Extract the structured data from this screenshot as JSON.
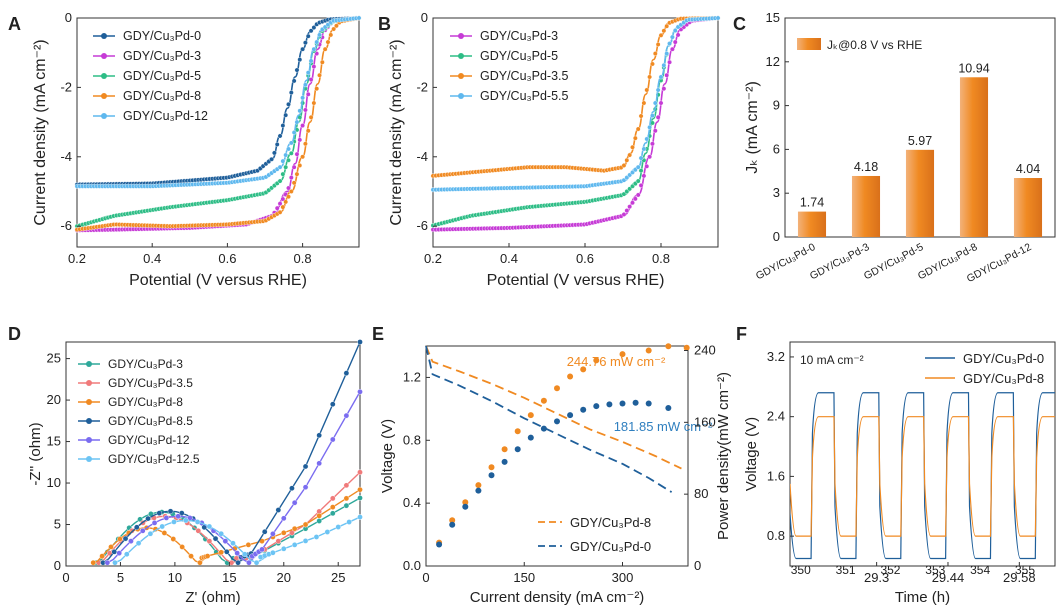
{
  "chart_data": [
    {
      "panel": "A",
      "type": "line",
      "xlabel": "Potential (V versus RHE)",
      "ylabel": "Current density (mA cm⁻²)",
      "xlim": [
        0.2,
        0.95
      ],
      "ylim": [
        -6.6,
        0
      ],
      "xticks": [
        0.2,
        0.4,
        0.6,
        0.8
      ],
      "yticks": [
        0,
        -2,
        -4,
        -6
      ],
      "legend_position": "top-left",
      "series": [
        {
          "name": "GDY/Cu₃Pd-0",
          "color": "#1f5f9a",
          "points": [
            [
              0.2,
              -4.8
            ],
            [
              0.4,
              -4.77
            ],
            [
              0.6,
              -4.6
            ],
            [
              0.68,
              -4.4
            ],
            [
              0.72,
              -4.05
            ],
            [
              0.74,
              -3.4
            ],
            [
              0.76,
              -2.6
            ],
            [
              0.78,
              -1.7
            ],
            [
              0.8,
              -0.9
            ],
            [
              0.82,
              -0.4
            ],
            [
              0.84,
              -0.15
            ],
            [
              0.87,
              -0.04
            ],
            [
              0.95,
              0
            ]
          ]
        },
        {
          "name": "GDY/Cu₃Pd-3",
          "color": "#c63bd6",
          "points": [
            [
              0.2,
              -6.12
            ],
            [
              0.3,
              -6.1
            ],
            [
              0.5,
              -6.05
            ],
            [
              0.65,
              -5.95
            ],
            [
              0.72,
              -5.7
            ],
            [
              0.76,
              -5.0
            ],
            [
              0.78,
              -4.2
            ],
            [
              0.8,
              -3.1
            ],
            [
              0.82,
              -1.9
            ],
            [
              0.84,
              -0.9
            ],
            [
              0.86,
              -0.35
            ],
            [
              0.88,
              -0.1
            ],
            [
              0.95,
              0
            ]
          ]
        },
        {
          "name": "GDY/Cu₃Pd-5",
          "color": "#2ebd86",
          "points": [
            [
              0.2,
              -6.0
            ],
            [
              0.3,
              -5.7
            ],
            [
              0.45,
              -5.45
            ],
            [
              0.6,
              -5.25
            ],
            [
              0.7,
              -5.05
            ],
            [
              0.74,
              -4.7
            ],
            [
              0.77,
              -3.9
            ],
            [
              0.79,
              -3.0
            ],
            [
              0.81,
              -1.9
            ],
            [
              0.83,
              -0.95
            ],
            [
              0.85,
              -0.4
            ],
            [
              0.88,
              -0.1
            ],
            [
              0.95,
              0
            ]
          ]
        },
        {
          "name": "GDY/Cu₃Pd-8",
          "color": "#f08a22",
          "points": [
            [
              0.2,
              -6.1
            ],
            [
              0.3,
              -5.95
            ],
            [
              0.45,
              -6.0
            ],
            [
              0.6,
              -5.95
            ],
            [
              0.7,
              -5.85
            ],
            [
              0.74,
              -5.6
            ],
            [
              0.77,
              -5.0
            ],
            [
              0.8,
              -4.0
            ],
            [
              0.82,
              -3.0
            ],
            [
              0.84,
              -1.9
            ],
            [
              0.86,
              -0.9
            ],
            [
              0.88,
              -0.35
            ],
            [
              0.9,
              -0.1
            ],
            [
              0.95,
              0
            ]
          ]
        },
        {
          "name": "GDY/Cu₃Pd-12",
          "color": "#5fb8ee",
          "points": [
            [
              0.2,
              -4.85
            ],
            [
              0.4,
              -4.85
            ],
            [
              0.6,
              -4.75
            ],
            [
              0.7,
              -4.6
            ],
            [
              0.74,
              -4.3
            ],
            [
              0.77,
              -3.6
            ],
            [
              0.79,
              -2.8
            ],
            [
              0.81,
              -1.8
            ],
            [
              0.83,
              -0.9
            ],
            [
              0.85,
              -0.35
            ],
            [
              0.88,
              -0.08
            ],
            [
              0.95,
              0
            ]
          ]
        }
      ]
    },
    {
      "panel": "B",
      "type": "line",
      "xlabel": "Potential (V versus RHE)",
      "ylabel": "Current density (mA cm⁻²)",
      "xlim": [
        0.2,
        0.95
      ],
      "ylim": [
        -6.6,
        0
      ],
      "xticks": [
        0.2,
        0.4,
        0.6,
        0.8
      ],
      "yticks": [
        0,
        -2,
        -4,
        -6
      ],
      "legend_position": "top-left",
      "series": [
        {
          "name": "GDY/Cu₃Pd-3",
          "color": "#c63bd6",
          "points": [
            [
              0.2,
              -6.1
            ],
            [
              0.4,
              -6.05
            ],
            [
              0.6,
              -5.95
            ],
            [
              0.7,
              -5.7
            ],
            [
              0.74,
              -5.1
            ],
            [
              0.77,
              -4.0
            ],
            [
              0.79,
              -3.0
            ],
            [
              0.81,
              -1.9
            ],
            [
              0.83,
              -0.9
            ],
            [
              0.85,
              -0.35
            ],
            [
              0.88,
              -0.08
            ],
            [
              0.95,
              0
            ]
          ]
        },
        {
          "name": "GDY/Cu₃Pd-5",
          "color": "#2ebd86",
          "points": [
            [
              0.2,
              -5.98
            ],
            [
              0.3,
              -5.7
            ],
            [
              0.45,
              -5.45
            ],
            [
              0.6,
              -5.3
            ],
            [
              0.7,
              -5.1
            ],
            [
              0.74,
              -4.7
            ],
            [
              0.76,
              -3.9
            ],
            [
              0.78,
              -2.9
            ],
            [
              0.8,
              -1.8
            ],
            [
              0.82,
              -0.8
            ],
            [
              0.84,
              -0.3
            ],
            [
              0.87,
              -0.05
            ],
            [
              0.95,
              0
            ]
          ]
        },
        {
          "name": "GDY/Cu₃Pd-3.5",
          "color": "#f08a22",
          "points": [
            [
              0.2,
              -4.55
            ],
            [
              0.3,
              -4.45
            ],
            [
              0.45,
              -4.3
            ],
            [
              0.55,
              -4.3
            ],
            [
              0.65,
              -4.4
            ],
            [
              0.7,
              -4.3
            ],
            [
              0.72,
              -3.9
            ],
            [
              0.74,
              -3.2
            ],
            [
              0.76,
              -2.2
            ],
            [
              0.78,
              -1.2
            ],
            [
              0.8,
              -0.5
            ],
            [
              0.82,
              -0.15
            ],
            [
              0.85,
              -0.02
            ],
            [
              0.95,
              0
            ]
          ]
        },
        {
          "name": "GDY/Cu₃Pd-5.5",
          "color": "#5fb8ee",
          "points": [
            [
              0.2,
              -4.95
            ],
            [
              0.4,
              -4.9
            ],
            [
              0.6,
              -4.85
            ],
            [
              0.7,
              -4.7
            ],
            [
              0.74,
              -4.3
            ],
            [
              0.76,
              -3.6
            ],
            [
              0.78,
              -2.7
            ],
            [
              0.8,
              -1.7
            ],
            [
              0.82,
              -0.8
            ],
            [
              0.84,
              -0.3
            ],
            [
              0.87,
              -0.05
            ],
            [
              0.95,
              0
            ]
          ]
        }
      ]
    },
    {
      "panel": "C",
      "type": "bar",
      "ylabel": "Jₖ (mA cm⁻²)",
      "legend": "Jₖ@0.8 V vs RHE",
      "categories": [
        "GDY/Cu₃Pd-0",
        "GDY/Cu₃Pd-3",
        "GDY/Cu₃Pd-5",
        "GDY/Cu₃Pd-8",
        "GDY/Cu₃Pd-12"
      ],
      "values": [
        1.74,
        4.18,
        5.97,
        10.94,
        4.04
      ],
      "value_labels": [
        "1.74",
        "4.18",
        "5.97",
        "10.94",
        "4.04"
      ],
      "ylim": [
        0,
        15
      ],
      "yticks": [
        0,
        3,
        6,
        9,
        12,
        15
      ],
      "bar_color": "#f08a22"
    },
    {
      "panel": "D",
      "type": "scatter",
      "xlabel": "Z' (ohm)",
      "ylabel": "-Z'' (ohm)",
      "xlim": [
        0,
        27
      ],
      "ylim": [
        0,
        27
      ],
      "xticks": [
        0,
        5,
        10,
        15,
        20,
        25
      ],
      "yticks": [
        0,
        5,
        10,
        15,
        20,
        25
      ],
      "legend_position": "top-left",
      "series": [
        {
          "name": "GDY/Cu₃Pd-3",
          "color": "#2ea89a",
          "arc": [
            2.8,
            14.8,
            6.5
          ],
          "tail": [
            [
              17,
              1.0
            ],
            [
              22,
              4.5
            ],
            [
              27,
              8.2
            ]
          ]
        },
        {
          "name": "GDY/Cu₃Pd-3.5",
          "color": "#f07a7a",
          "arc": [
            3.0,
            15.2,
            6.0
          ],
          "tail": [
            [
              17,
              1.0
            ],
            [
              22,
              5.0
            ],
            [
              27,
              11.3
            ]
          ]
        },
        {
          "name": "GDY/Cu₃Pd-8",
          "color": "#f08a22",
          "arc": [
            2.5,
            12.3,
            4.6
          ],
          "tail": [
            [
              13,
              1.2
            ],
            [
              18,
              3.0
            ],
            [
              22,
              5.0
            ],
            [
              27,
              9.2
            ]
          ]
        },
        {
          "name": "GDY/Cu₃Pd-8.5",
          "color": "#1f5f9a",
          "arc": [
            3.4,
            15.8,
            6.6
          ],
          "tail": [
            [
              17,
              1.5
            ],
            [
              22,
              12.0
            ],
            [
              27,
              27.0
            ]
          ]
        },
        {
          "name": "GDY/Cu₃Pd-12",
          "color": "#7a6cf0",
          "arc": [
            3.8,
            16.8,
            6.0
          ],
          "tail": [
            [
              18,
              2.0
            ],
            [
              22,
              9.5
            ],
            [
              27,
              21.0
            ]
          ]
        },
        {
          "name": "GDY/Cu₃Pd-12.5",
          "color": "#6cc4f4",
          "arc": [
            4.5,
            17.5,
            5.5
          ],
          "tail": [
            [
              19,
              1.6
            ],
            [
              23,
              3.5
            ],
            [
              27,
              5.9
            ]
          ]
        }
      ]
    },
    {
      "panel": "E",
      "type": "line+scatter",
      "xlabel": "Current density (mA cm⁻²)",
      "ylabel": "Voltage (V)",
      "y2label": "Power density(mW cm⁻²)",
      "xlim": [
        0,
        400
      ],
      "ylim": [
        0,
        1.4
      ],
      "y2lim": [
        0,
        245
      ],
      "xticks": [
        0,
        150,
        300
      ],
      "yticks": [
        0.0,
        0.4,
        0.8,
        1.2
      ],
      "y2ticks": [
        0,
        80,
        160,
        240
      ],
      "legend_position": "bottom-right",
      "annotations": [
        "244.76 mW cm⁻²",
        "181.85 mW cm⁻²"
      ],
      "series": [
        {
          "name": "GDY/Cu₃Pd-8",
          "color": "#f08a22",
          "style": "dashed",
          "voltage": [
            [
              0,
              1.4
            ],
            [
              10,
              1.3
            ],
            [
              50,
              1.24
            ],
            [
              100,
              1.16
            ],
            [
              150,
              1.07
            ],
            [
              200,
              0.97
            ],
            [
              250,
              0.87
            ],
            [
              300,
              0.79
            ],
            [
              350,
              0.7
            ],
            [
              390,
              0.62
            ]
          ],
          "power": [
            [
              20,
              26
            ],
            [
              40,
              51
            ],
            [
              60,
              71
            ],
            [
              80,
              90
            ],
            [
              100,
              110
            ],
            [
              120,
              130
            ],
            [
              140,
              150
            ],
            [
              160,
              168
            ],
            [
              180,
              184
            ],
            [
              200,
              198
            ],
            [
              220,
              211
            ],
            [
              240,
              219
            ],
            [
              260,
              229
            ],
            [
              300,
              236
            ],
            [
              340,
              240
            ],
            [
              370,
              244.76
            ],
            [
              398,
              243
            ]
          ]
        },
        {
          "name": "GDY/Cu₃Pd-0",
          "color": "#1f5f9a",
          "style": "dashed",
          "voltage": [
            [
              0,
              1.4
            ],
            [
              10,
              1.22
            ],
            [
              50,
              1.15
            ],
            [
              100,
              1.05
            ],
            [
              150,
              0.94
            ],
            [
              200,
              0.84
            ],
            [
              250,
              0.74
            ],
            [
              300,
              0.65
            ],
            [
              340,
              0.56
            ],
            [
              375,
              0.47
            ]
          ],
          "power": [
            [
              20,
              24
            ],
            [
              40,
              46
            ],
            [
              60,
              66
            ],
            [
              80,
              84
            ],
            [
              100,
              101
            ],
            [
              120,
              116
            ],
            [
              140,
              130
            ],
            [
              160,
              143
            ],
            [
              180,
              153
            ],
            [
              200,
              161
            ],
            [
              220,
              168
            ],
            [
              240,
              174
            ],
            [
              260,
              178
            ],
            [
              280,
              180
            ],
            [
              300,
              181
            ],
            [
              320,
              181.85
            ],
            [
              340,
              181
            ],
            [
              370,
              176
            ]
          ]
        }
      ]
    },
    {
      "panel": "F",
      "type": "line",
      "xlabel": "Time (h)",
      "ylabel": "Voltage (V)",
      "xlim": [
        29.13,
        29.65
      ],
      "ylim": [
        0.4,
        3.4
      ],
      "xticks": [
        29.3,
        29.44,
        29.58
      ],
      "yticks": [
        0.8,
        1.6,
        2.4,
        3.2
      ],
      "annotation": "10 mA cm⁻²",
      "cycle_labels": [
        "350",
        "351",
        "352",
        "353",
        "354",
        "355"
      ],
      "legend_position": "top-right",
      "series": [
        {
          "name": "GDY/Cu₃Pd-0",
          "color": "#1f5f9a",
          "low": 0.5,
          "high": 2.72
        },
        {
          "name": "GDY/Cu₃Pd-8",
          "color": "#f08a22",
          "low": 0.8,
          "high": 2.4
        }
      ]
    }
  ],
  "labels": {
    "A": "A",
    "B": "B",
    "C": "C",
    "D": "D",
    "E": "E",
    "F": "F"
  }
}
